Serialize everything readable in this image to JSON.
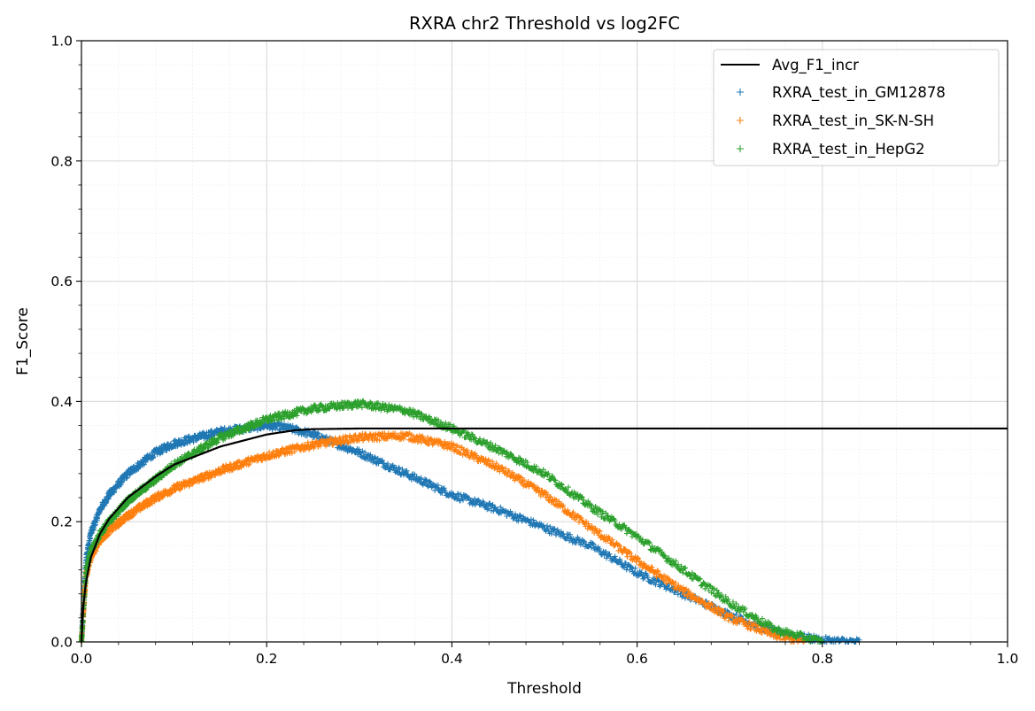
{
  "chart_data": {
    "type": "scatter",
    "title": "RXRA chr2 Threshold vs log2FC",
    "xlabel": "Threshold",
    "ylabel": "F1_Score",
    "xlim": [
      0,
      1
    ],
    "ylim": [
      0,
      1
    ],
    "xticks": [
      "0.0",
      "0.2",
      "0.4",
      "0.6",
      "0.8",
      "1.0"
    ],
    "yticks": [
      "0.0",
      "0.2",
      "0.4",
      "0.6",
      "0.8",
      "1.0"
    ],
    "grid": true,
    "minor_grid": true,
    "legend_position": "top-right",
    "line": {
      "name": "Avg_F1_incr",
      "color": "#000000",
      "x": [
        0,
        0.002,
        0.005,
        0.01,
        0.02,
        0.03,
        0.05,
        0.08,
        0.1,
        0.15,
        0.2,
        0.23,
        0.25,
        0.3,
        0.35,
        0.4,
        0.5,
        0.6,
        0.7,
        0.8,
        0.9,
        1.0
      ],
      "y": [
        0.0,
        0.06,
        0.1,
        0.14,
        0.18,
        0.205,
        0.24,
        0.275,
        0.295,
        0.325,
        0.345,
        0.352,
        0.354,
        0.355,
        0.355,
        0.355,
        0.355,
        0.355,
        0.355,
        0.355,
        0.355,
        0.355
      ]
    },
    "series": [
      {
        "name": "RXRA_test_in_GM12878",
        "color": "#1f77b4",
        "marker": "+",
        "x": [
          0,
          0.005,
          0.01,
          0.02,
          0.03,
          0.05,
          0.08,
          0.1,
          0.15,
          0.2,
          0.22,
          0.25,
          0.3,
          0.35,
          0.4,
          0.45,
          0.5,
          0.55,
          0.6,
          0.65,
          0.7,
          0.75,
          0.8,
          0.84
        ],
        "y": [
          0.0,
          0.14,
          0.18,
          0.22,
          0.245,
          0.28,
          0.315,
          0.33,
          0.35,
          0.36,
          0.357,
          0.345,
          0.315,
          0.28,
          0.245,
          0.22,
          0.19,
          0.16,
          0.115,
          0.08,
          0.045,
          0.015,
          0.003,
          0.0
        ]
      },
      {
        "name": "RXRA_test_in_SK-N-SH",
        "color": "#ff7f0e",
        "marker": "+",
        "x": [
          0,
          0.005,
          0.01,
          0.02,
          0.03,
          0.05,
          0.08,
          0.1,
          0.15,
          0.2,
          0.25,
          0.3,
          0.35,
          0.4,
          0.45,
          0.5,
          0.55,
          0.6,
          0.65,
          0.7,
          0.75,
          0.78
        ],
        "y": [
          0.0,
          0.11,
          0.14,
          0.17,
          0.185,
          0.21,
          0.24,
          0.255,
          0.285,
          0.31,
          0.328,
          0.34,
          0.343,
          0.325,
          0.29,
          0.245,
          0.19,
          0.135,
          0.085,
          0.04,
          0.01,
          0.0
        ]
      },
      {
        "name": "RXRA_test_in_HepG2",
        "color": "#2ca02c",
        "marker": "+",
        "x": [
          0,
          0.005,
          0.01,
          0.02,
          0.03,
          0.05,
          0.08,
          0.1,
          0.15,
          0.2,
          0.25,
          0.3,
          0.35,
          0.4,
          0.45,
          0.5,
          0.55,
          0.6,
          0.65,
          0.7,
          0.75,
          0.8
        ],
        "y": [
          0.0,
          0.12,
          0.15,
          0.18,
          0.2,
          0.235,
          0.27,
          0.295,
          0.34,
          0.37,
          0.388,
          0.396,
          0.385,
          0.355,
          0.32,
          0.28,
          0.225,
          0.175,
          0.12,
          0.065,
          0.02,
          0.0
        ]
      }
    ]
  }
}
